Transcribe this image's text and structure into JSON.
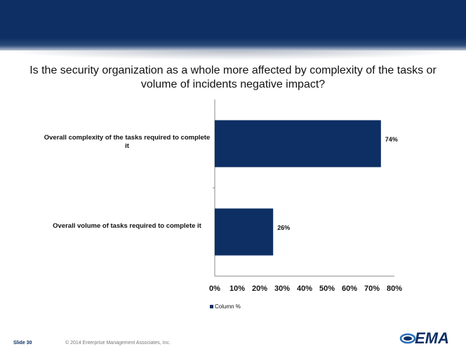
{
  "slide": {
    "title": "Is the security organization as a whole more affected by complexity of the tasks or volume of incidents negative impact?",
    "footer_slide": "Slide 30",
    "footer_copyright": "© 2014 Enterprise Management Associates, Inc.",
    "logo_text": "EMA"
  },
  "colors": {
    "band": "#0d2f63",
    "bar": "#0d2f63"
  },
  "chart_data": {
    "type": "bar",
    "orientation": "horizontal",
    "categories": [
      "Overall complexity of the tasks required to complete it",
      "Overall volume of tasks required to complete it"
    ],
    "series": [
      {
        "name": "Column %",
        "values": [
          74,
          26
        ],
        "labels": [
          "74%",
          "26%"
        ]
      }
    ],
    "xlim": [
      0,
      80
    ],
    "xticks": [
      "0%",
      "10%",
      "20%",
      "30%",
      "40%",
      "50%",
      "60%",
      "70%",
      "80%"
    ],
    "grid": false,
    "legend_position": "bottom-left"
  }
}
